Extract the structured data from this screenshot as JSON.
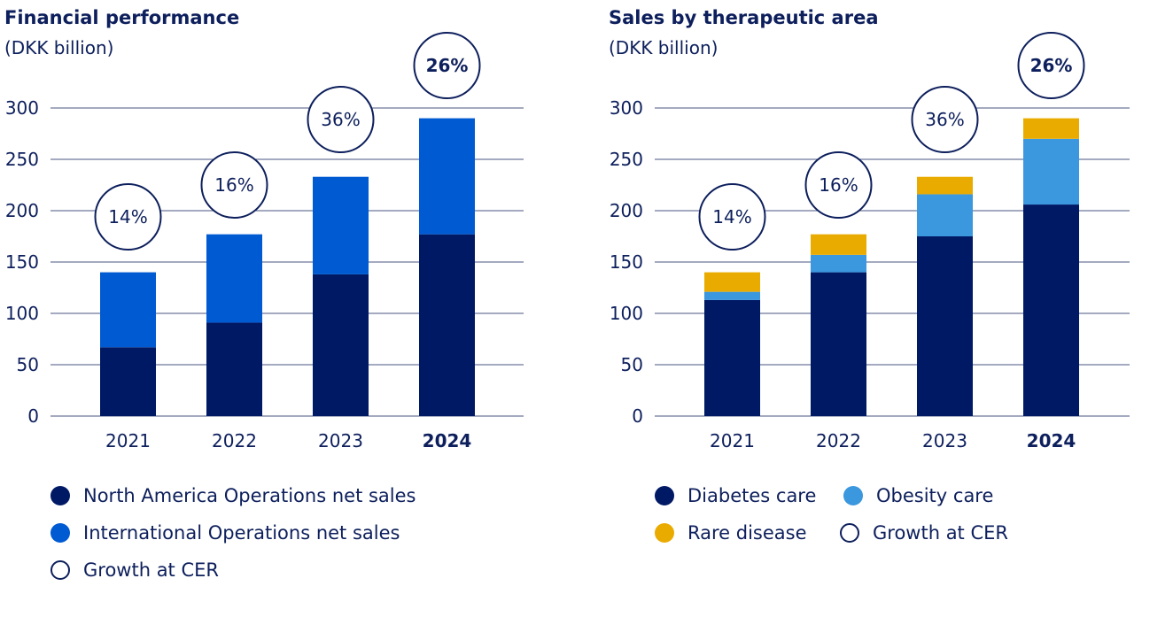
{
  "colors": {
    "navy": "#001965",
    "blue": "#005ad2",
    "light_blue": "#3b97de",
    "gold": "#eaab00",
    "text": "#0d1f5c",
    "grid": "#4a5580"
  },
  "chart_data": [
    {
      "type": "bar",
      "stacked": true,
      "title": "Financial performance",
      "subtitle": "(DKK billion)",
      "categories": [
        "2021",
        "2022",
        "2023",
        "2024"
      ],
      "bold_categories": [
        "2024"
      ],
      "ylim": [
        0,
        300
      ],
      "yticks": [
        "0",
        "50",
        "100",
        "150",
        "200",
        "250",
        "300"
      ],
      "grid": true,
      "series": [
        {
          "name": "North America Operations net sales",
          "color": "#001965",
          "values": [
            67,
            91,
            138,
            177
          ]
        },
        {
          "name": "International Operations net sales",
          "color": "#005ad2",
          "values": [
            73,
            86,
            95,
            113
          ]
        }
      ],
      "annotations": [
        {
          "category": "2021",
          "text": "14%",
          "bold": false
        },
        {
          "category": "2022",
          "text": "16%",
          "bold": false
        },
        {
          "category": "2023",
          "text": "36%",
          "bold": false
        },
        {
          "category": "2024",
          "text": "26%",
          "bold": true
        }
      ],
      "legend": [
        {
          "label": "North America Operations net sales",
          "swatch": "#001965"
        },
        {
          "label": "International Operations net sales",
          "swatch": "#005ad2"
        },
        {
          "label": "Growth at CER",
          "swatch": "ring"
        }
      ]
    },
    {
      "type": "bar",
      "stacked": true,
      "title": "Sales by therapeutic area",
      "subtitle": "(DKK billion)",
      "categories": [
        "2021",
        "2022",
        "2023",
        "2024"
      ],
      "bold_categories": [
        "2024"
      ],
      "ylim": [
        0,
        300
      ],
      "yticks": [
        "0",
        "50",
        "100",
        "150",
        "200",
        "250",
        "300"
      ],
      "grid": true,
      "series": [
        {
          "name": "Diabetes care",
          "color": "#001965",
          "values": [
            113,
            140,
            175,
            206
          ]
        },
        {
          "name": "Obesity care",
          "color": "#3b97de",
          "values": [
            8,
            17,
            41,
            64
          ]
        },
        {
          "name": "Rare disease",
          "color": "#eaab00",
          "values": [
            19,
            20,
            17,
            20
          ]
        }
      ],
      "annotations": [
        {
          "category": "2021",
          "text": "14%",
          "bold": false
        },
        {
          "category": "2022",
          "text": "16%",
          "bold": false
        },
        {
          "category": "2023",
          "text": "36%",
          "bold": false
        },
        {
          "category": "2024",
          "text": "26%",
          "bold": true
        }
      ],
      "legend": [
        {
          "label": "Diabetes care",
          "swatch": "#001965"
        },
        {
          "label": "Obesity care",
          "swatch": "#3b97de"
        },
        {
          "label": "Rare disease",
          "swatch": "#eaab00"
        },
        {
          "label": "Growth at CER",
          "swatch": "ring"
        }
      ]
    }
  ]
}
